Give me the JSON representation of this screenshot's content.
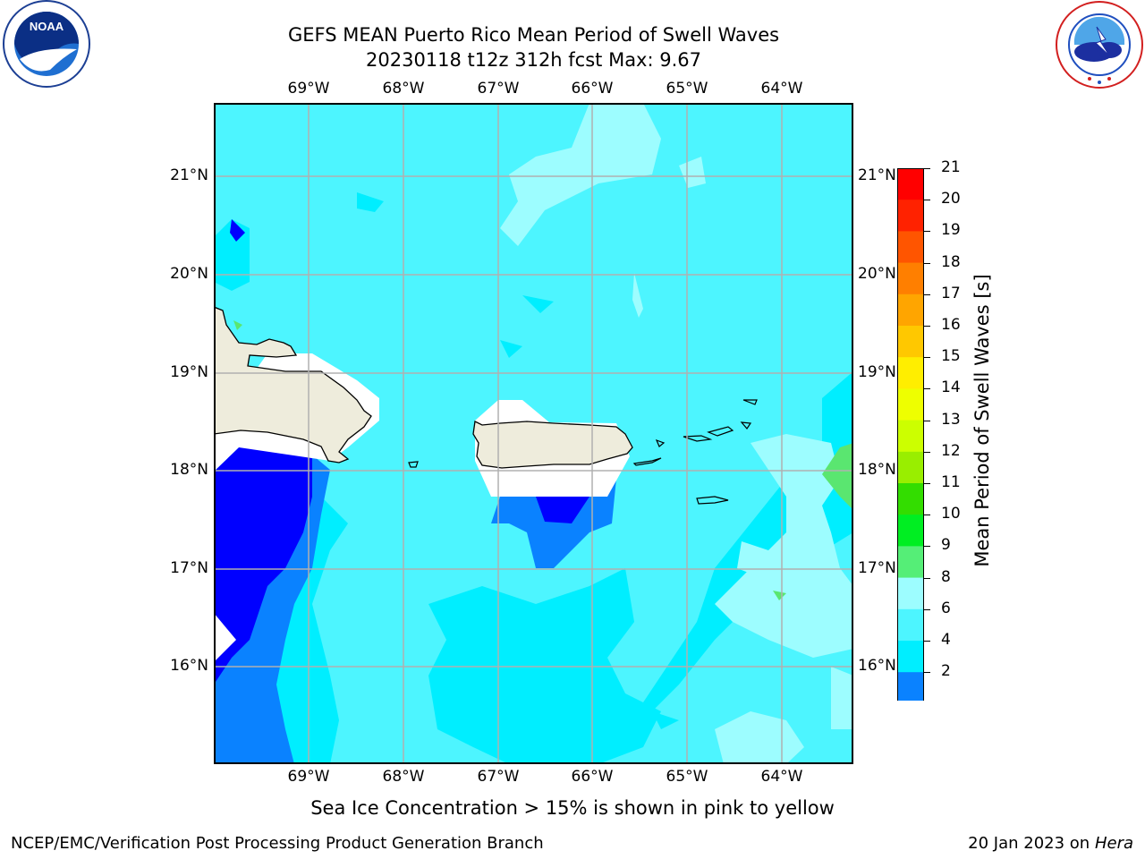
{
  "header": {
    "title_line1": "GEFS MEAN Puerto Rico Mean Period of Swell Waves",
    "title_line2": "20230118 t12z 312h fcst   Max: 9.67"
  },
  "map": {
    "lon_labels": [
      "69°W",
      "68°W",
      "67°W",
      "66°W",
      "65°W",
      "64°W"
    ],
    "lat_labels": [
      "21°N",
      "20°N",
      "19°N",
      "18°N",
      "17°N",
      "16°N"
    ],
    "land_color": "#eeecdc",
    "grid_color": "#b0b0b0",
    "level_colors": {
      "2-4": "#0000ff",
      "4-6": "#0a82ff",
      "6-8": "#00eeff",
      "8-9": "#4df5ff",
      "9-10": "#9dfdff",
      "10-11": "#5ae670",
      "land_mask": "#ffffff"
    }
  },
  "colorbar": {
    "label": "Mean Period of Swell Waves [s]",
    "ticks": [
      "21",
      "20",
      "19",
      "18",
      "17",
      "16",
      "15",
      "14",
      "13",
      "12",
      "11",
      "10",
      "9",
      "8",
      "6",
      "4",
      "2"
    ],
    "colors": [
      "#ff0000",
      "#ff2200",
      "#ff5500",
      "#ff7f00",
      "#ffa500",
      "#ffc800",
      "#ffee00",
      "#eeff00",
      "#ccff00",
      "#99ee00",
      "#33dd00",
      "#00ee22",
      "#55ee77",
      "#9dfdff",
      "#4df5ff",
      "#00eeff",
      "#0a82ff"
    ],
    "extend_color": "#0000ff"
  },
  "footer": {
    "note": "Sea Ice Concentration > 15% is shown in pink to yellow",
    "branch": "NCEP/EMC/Verification Post Processing Product Generation Branch",
    "date": "20 Jan 2023 on",
    "machine": "Hera"
  },
  "logos": {
    "noaa": "NOAA",
    "nws_ring": "NATIONAL WEATHER SERVICE",
    "noaa_ring": "NATIONAL OCEANIC AND ATMOSPHERIC ADMINISTRATION · U.S. DEPARTMENT OF COMMERCE"
  }
}
